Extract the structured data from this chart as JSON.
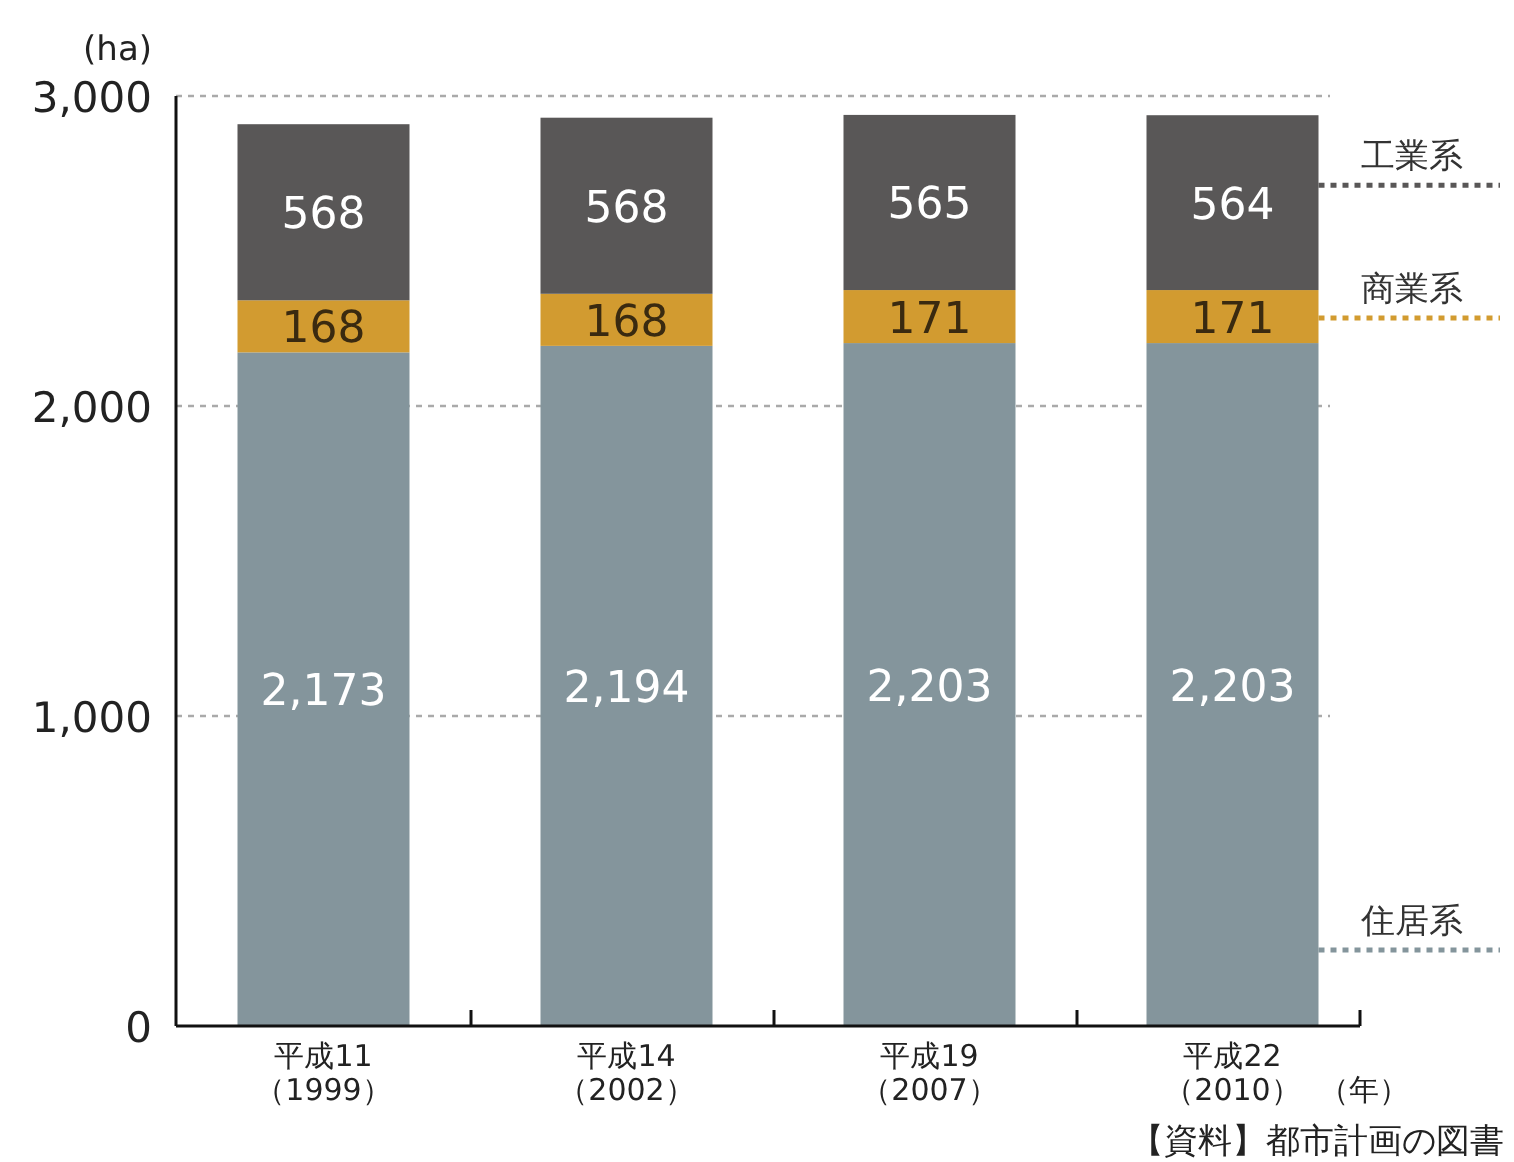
{
  "chart_data": {
    "type": "bar",
    "stacked": true,
    "ylabel": "(ha)",
    "xlabel": "（年）",
    "categories": [
      "平成11\n（1999）",
      "平成14\n（2002）",
      "平成19\n（2007）",
      "平成22\n（2010）"
    ],
    "series": [
      {
        "name": "住居系",
        "color": "#84959c",
        "values": [
          2173,
          2194,
          2203,
          2203
        ],
        "value_labels": [
          "2,173",
          "2,194",
          "2,203",
          "2,203"
        ]
      },
      {
        "name": "商業系",
        "color": "#d29b30",
        "values": [
          168,
          168,
          171,
          171
        ],
        "value_labels": [
          "168",
          "168",
          "171",
          "171"
        ]
      },
      {
        "name": "工業系",
        "color": "#595757",
        "values": [
          568,
          568,
          565,
          564
        ],
        "value_labels": [
          "568",
          "568",
          "565",
          "564"
        ]
      }
    ],
    "ylim": [
      0,
      3000
    ],
    "yticks": [
      0,
      {
        "value": 1000,
        "label": "1,000"
      },
      {
        "value": 2000,
        "label": "2,000"
      },
      {
        "value": 3000,
        "label": "3,000"
      }
    ],
    "grid": "y",
    "legend": "right",
    "annotations": [
      "【資料】都市計画の図書"
    ]
  }
}
